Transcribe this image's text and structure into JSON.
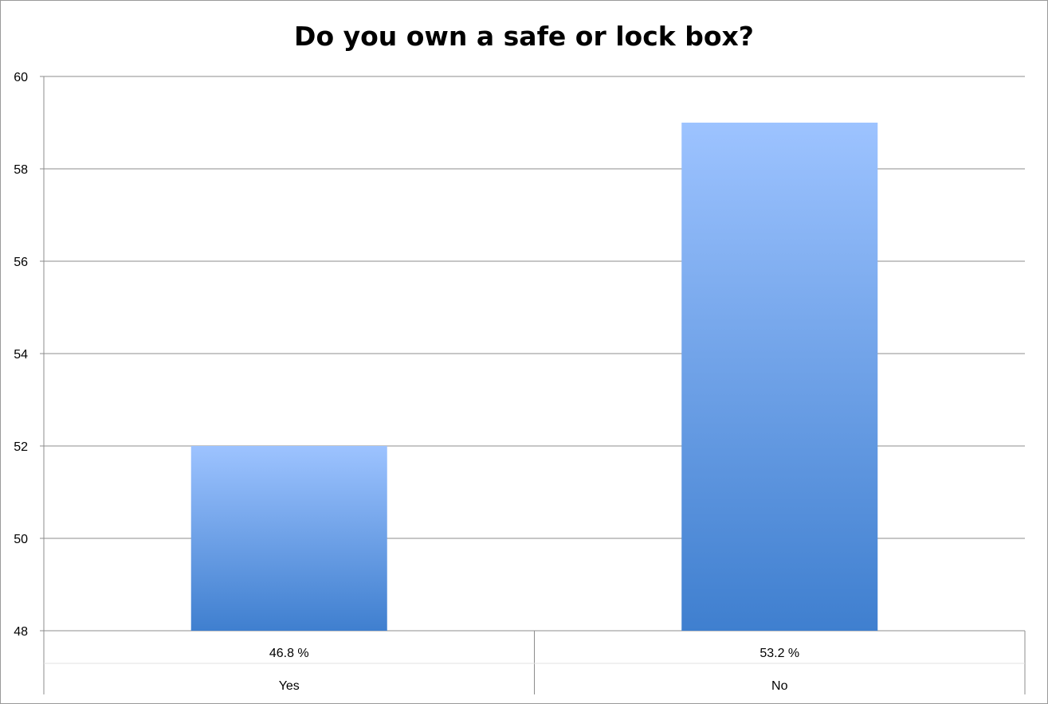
{
  "chart_data": {
    "type": "bar",
    "title": "Do you own a safe or lock box?",
    "categories": [
      "Yes",
      "No"
    ],
    "data_labels": [
      "46.8 %",
      "53.2 %"
    ],
    "values": [
      52,
      59
    ],
    "ylim": [
      48,
      60
    ],
    "yticks": [
      "48",
      "50",
      "52",
      "54",
      "56",
      "58",
      "60"
    ],
    "grid": true,
    "legend": "none",
    "colors": {
      "bar_top": "#9DC3FF",
      "bar_bottom": "#3F7FCF",
      "grid": "#8c8c8c",
      "axis": "#8c8c8c"
    }
  }
}
